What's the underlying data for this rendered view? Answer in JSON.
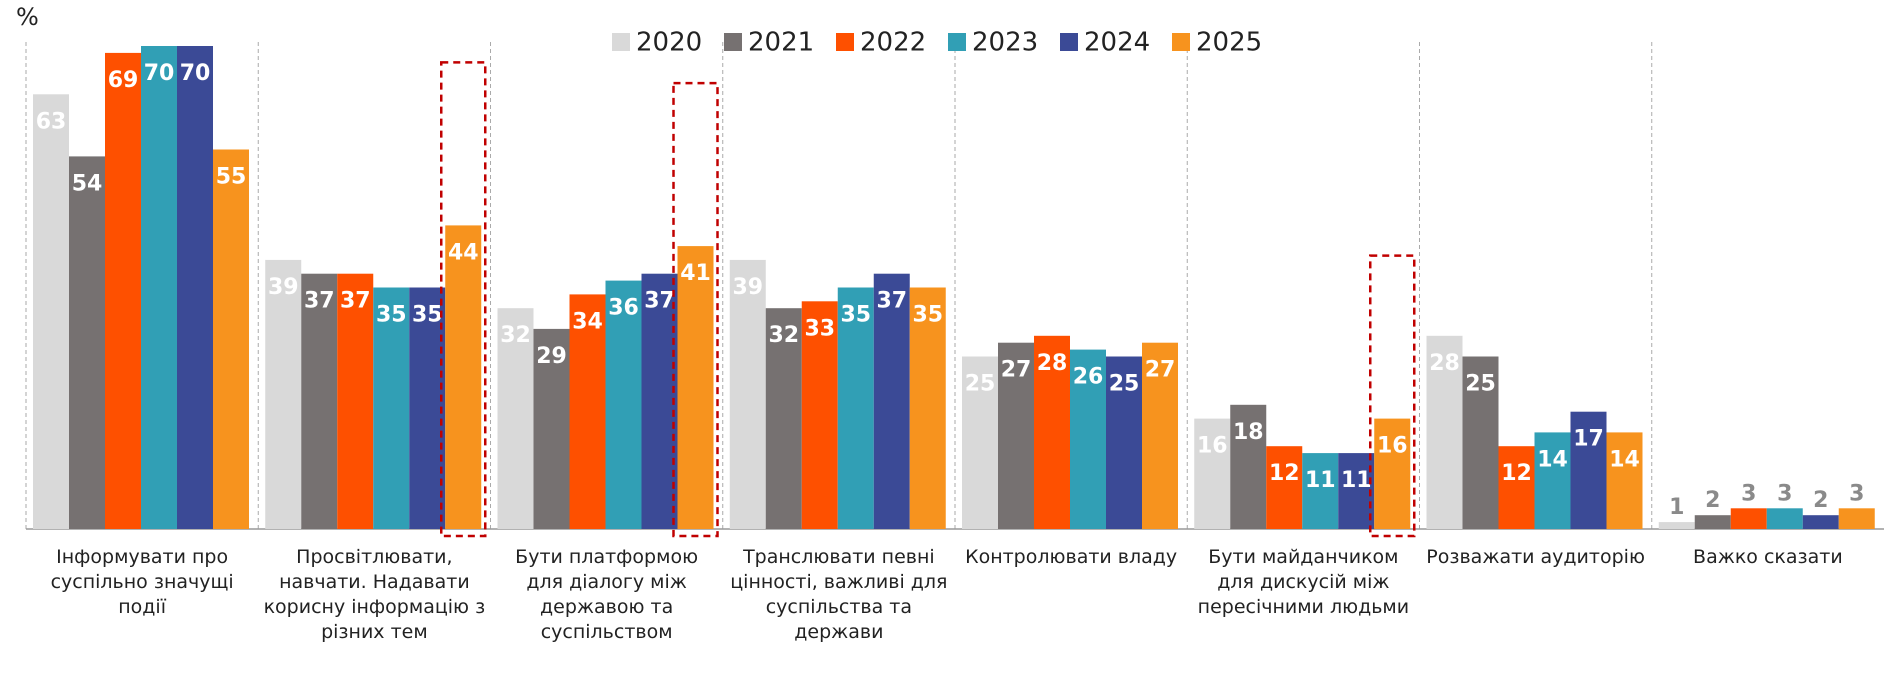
{
  "chart_data": {
    "type": "bar",
    "unit_label": "%",
    "categories": [
      "Інформувати про суспільно значущі події",
      "Просвітлювати, навчати. Надавати корисну інформацію з різних тем",
      "Бути платформою для діалогу між державою та суспільством",
      "Транслювати певні цінності, важливі для суспільства та держави",
      "Контролювати владу",
      "Бути майданчиком для дискусій між пересічними людьми",
      "Розважати аудиторію",
      "Важко сказати"
    ],
    "series": [
      {
        "name": "2020",
        "color": "#d9d9d9",
        "values": [
          63,
          39,
          32,
          39,
          25,
          16,
          28,
          1
        ]
      },
      {
        "name": "2021",
        "color": "#767171",
        "values": [
          54,
          37,
          29,
          32,
          27,
          18,
          25,
          2
        ]
      },
      {
        "name": "2022",
        "color": "#fe5000",
        "values": [
          69,
          37,
          34,
          33,
          28,
          12,
          12,
          3
        ]
      },
      {
        "name": "2023",
        "color": "#319fb5",
        "values": [
          70,
          35,
          36,
          35,
          26,
          11,
          14,
          3
        ]
      },
      {
        "name": "2024",
        "color": "#3b4a96",
        "values": [
          70,
          35,
          37,
          37,
          25,
          11,
          17,
          2
        ]
      },
      {
        "name": "2025",
        "color": "#f7931e",
        "values": [
          55,
          44,
          41,
          35,
          27,
          16,
          14,
          3
        ]
      }
    ],
    "ylim": [
      0,
      70
    ],
    "legend": "top",
    "highlight": {
      "series": 5,
      "categories": [
        1,
        2,
        5
      ],
      "color": "#c00000"
    }
  }
}
